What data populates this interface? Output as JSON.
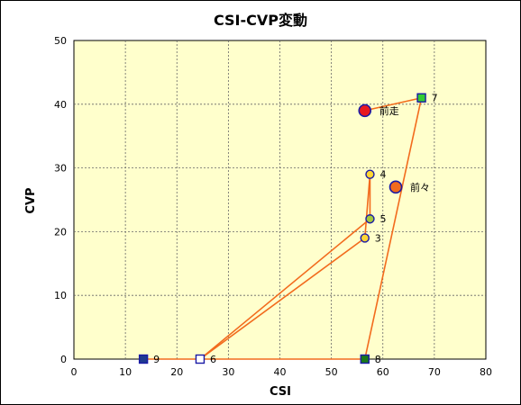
{
  "chart_data": {
    "type": "scatter",
    "title": "CSI-CVP変動",
    "xlabel": "CSI",
    "ylabel": "CVP",
    "xlim": [
      0,
      80
    ],
    "ylim": [
      0,
      50
    ],
    "xticks": [
      "0",
      "10",
      "20",
      "30",
      "40",
      "50",
      "60",
      "70",
      "80"
    ],
    "yticks": [
      "0",
      "10",
      "20",
      "30",
      "40",
      "50"
    ],
    "grid": true,
    "plot_background": "#ffffcc",
    "line_color": "#f26b1d",
    "path_order": [
      "9",
      "6",
      "3",
      "4",
      "5",
      "6",
      "8",
      "7",
      "前走"
    ],
    "points": [
      {
        "label": "前走",
        "x": 56.5,
        "y": 39,
        "shape": "circle-large",
        "color": "#e8191f"
      },
      {
        "label": "前々",
        "x": 62.5,
        "y": 27,
        "shape": "circle-large",
        "color": "#f26b1d"
      },
      {
        "label": "3",
        "x": 56.5,
        "y": 19,
        "shape": "circle",
        "color": "#ffd633"
      },
      {
        "label": "4",
        "x": 57.5,
        "y": 29,
        "shape": "circle",
        "color": "#ffd633"
      },
      {
        "label": "5",
        "x": 57.5,
        "y": 22,
        "shape": "circle",
        "color": "#a5c93c"
      },
      {
        "label": "6",
        "x": 24.5,
        "y": 0,
        "shape": "square",
        "color": "#ffffff"
      },
      {
        "label": "7",
        "x": 67.5,
        "y": 41,
        "shape": "square",
        "color": "#33cc33"
      },
      {
        "label": "8",
        "x": 56.5,
        "y": 0,
        "shape": "square",
        "color": "#1a7a1a"
      },
      {
        "label": "9",
        "x": 13.5,
        "y": 0,
        "shape": "square",
        "color": "#1f3a8f"
      }
    ]
  }
}
